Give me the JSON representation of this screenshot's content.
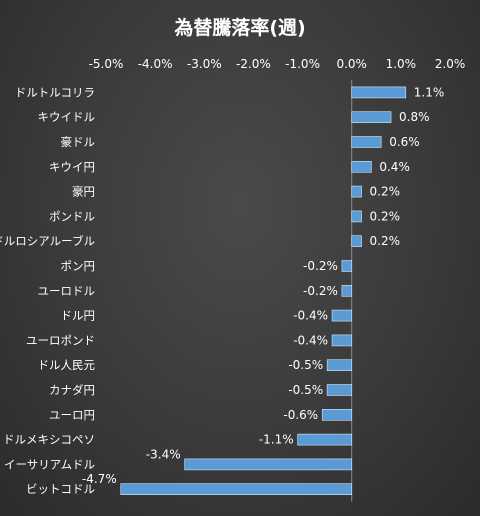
{
  "chart_data": {
    "type": "bar",
    "orientation": "horizontal",
    "title": "為替騰落率(週)",
    "xlim": [
      -0.05,
      0.02
    ],
    "x_ticks": [
      -0.05,
      -0.04,
      -0.03,
      -0.02,
      -0.01,
      0.0,
      0.01,
      0.02
    ],
    "x_tick_labels": [
      "-5.0%",
      "-4.0%",
      "-3.0%",
      "-2.0%",
      "-1.0%",
      "0.0%",
      "1.0%",
      "2.0%"
    ],
    "axis_position": "top",
    "grid": false,
    "bar_color": "#5b9bd5",
    "categories": [
      "ドルトルコリラ",
      "キウイドル",
      "豪ドル",
      "キウイ円",
      "豪円",
      "ポンドル",
      "ドルロシアルーブル",
      "ポン円",
      "ユーロドル",
      "ドル円",
      "ユーロポンド",
      "ドル人民元",
      "カナダ円",
      "ユーロ円",
      "ドルメキシコペソ",
      "イーサリアムドル",
      "ビットコドル"
    ],
    "values": [
      0.011,
      0.008,
      0.006,
      0.004,
      0.002,
      0.002,
      0.002,
      -0.002,
      -0.002,
      -0.004,
      -0.004,
      -0.005,
      -0.005,
      -0.006,
      -0.011,
      -0.034,
      -0.047
    ],
    "data_labels": [
      "1.1%",
      "0.8%",
      "0.6%",
      "0.4%",
      "0.2%",
      "0.2%",
      "0.2%",
      "-0.2%",
      "-0.2%",
      "-0.4%",
      "-0.4%",
      "-0.5%",
      "-0.5%",
      "-0.6%",
      "-1.1%",
      "-3.4%",
      "-4.7%"
    ]
  }
}
